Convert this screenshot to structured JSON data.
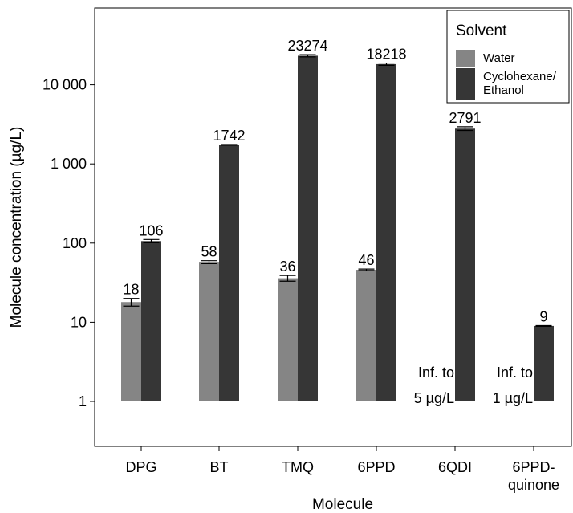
{
  "chart_data": {
    "type": "bar",
    "scale": "log",
    "xlabel": "Molecule",
    "ylabel": "Molecule concentration (µg/L)",
    "ylim": [
      0.5,
      60000
    ],
    "grid": false,
    "legend_position": "top-right",
    "legend": {
      "title": "Solvent",
      "items": [
        {
          "label_lines": [
            "Water"
          ],
          "color": "#858585"
        },
        {
          "label_lines": [
            "Cyclohexane/",
            "Ethanol"
          ],
          "color": "#363636"
        }
      ]
    },
    "y_ticks": [
      {
        "value": 1,
        "label": "1"
      },
      {
        "value": 10,
        "label": "10"
      },
      {
        "value": 100,
        "label": "100"
      },
      {
        "value": 1000,
        "label": "1 000"
      },
      {
        "value": 10000,
        "label": "10 000"
      }
    ],
    "categories": [
      {
        "lines": [
          "DPG"
        ]
      },
      {
        "lines": [
          "BT"
        ]
      },
      {
        "lines": [
          "TMQ"
        ]
      },
      {
        "lines": [
          "6PPD"
        ]
      },
      {
        "lines": [
          "6QDI"
        ]
      },
      {
        "lines": [
          "6PPD-",
          "quinone"
        ]
      }
    ],
    "series": [
      {
        "name": "Water",
        "color": "#858585",
        "values": [
          18,
          58,
          36,
          46,
          null,
          null
        ],
        "error_low": [
          16,
          55,
          33,
          45,
          null,
          null
        ],
        "error_high": [
          20,
          60,
          39,
          47,
          null,
          null
        ],
        "labels": [
          "18",
          "58",
          "36",
          "46",
          null,
          null
        ]
      },
      {
        "name": "Cyclohexane/Ethanol",
        "color": "#363636",
        "values": [
          106,
          1742,
          23274,
          18218,
          2791,
          9
        ],
        "error_low": [
          101,
          1722,
          22500,
          17600,
          2650,
          8.9
        ],
        "error_high": [
          111,
          1762,
          24000,
          18800,
          2950,
          9.1
        ],
        "labels": [
          "106",
          "1742",
          "23274",
          "18218",
          "2791",
          "9"
        ]
      }
    ],
    "annotations": [
      {
        "category_index": 4,
        "lines": [
          "Inf. to",
          "5 µg/L"
        ]
      },
      {
        "category_index": 5,
        "lines": [
          "Inf. to",
          "1 µg/L"
        ]
      }
    ]
  }
}
